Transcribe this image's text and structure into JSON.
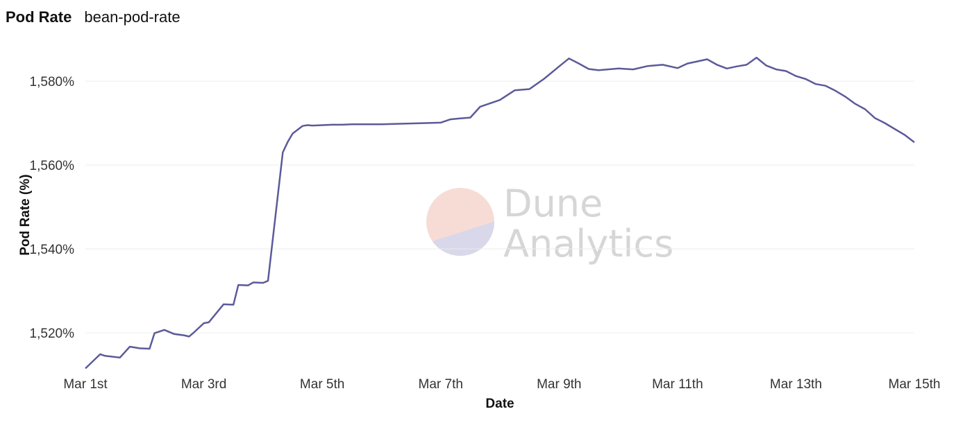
{
  "header": {
    "title": "Pod Rate",
    "subtitle": "bean-pod-rate"
  },
  "watermark": {
    "line1": "Dune",
    "line2": "Analytics"
  },
  "colors": {
    "line": "#5b5a99",
    "grid": "#ececec",
    "wm_top": "#f7dcd6",
    "wm_bottom": "#d8d8ea"
  },
  "chart_data": {
    "type": "line",
    "title": "",
    "xlabel": "Date",
    "ylabel": "Pod Rate (%)",
    "x_tick_labels": [
      "Mar 1st",
      "Mar 3rd",
      "Mar 5th",
      "Mar 7th",
      "Mar 9th",
      "Mar 11th",
      "Mar 13th",
      "Mar 15th"
    ],
    "x_tick_dates": [
      "03-01",
      "03-03",
      "03-05",
      "03-07",
      "03-09",
      "03-11",
      "03-13",
      "03-15"
    ],
    "y_tick_values": [
      1520,
      1540,
      1560,
      1580
    ],
    "y_tick_labels": [
      "1,520%",
      "1,540%",
      "1,560%",
      "1,580%"
    ],
    "xlim": [
      "03-01 00:00",
      "03-15 00:00"
    ],
    "ylim": [
      1512,
      1586
    ],
    "grid": "horizontal",
    "legend": "none",
    "series": [
      {
        "x": [
          "03-01 00:00",
          "03-01 06:00",
          "03-01 08:00",
          "03-01 14:00",
          "03-01 18:00",
          "03-01 22:00",
          "03-02 02:00",
          "03-02 04:00",
          "03-02 08:00",
          "03-02 12:00",
          "03-02 16:00",
          "03-02 18:00",
          "03-02 20:00",
          "03-03 00:00",
          "03-03 02:00",
          "03-03 08:00",
          "03-03 12:00",
          "03-03 14:00",
          "03-03 18:00",
          "03-03 20:00",
          "03-04 00:00",
          "03-04 02:00",
          "03-04 08:00",
          "03-04 10:00",
          "03-04 12:00",
          "03-04 16:00",
          "03-04 18:00",
          "03-04 20:00",
          "03-05 00:00",
          "03-05 04:00",
          "03-05 08:00",
          "03-05 12:00",
          "03-06 00:00",
          "03-06 18:00",
          "03-07 00:00",
          "03-07 04:00",
          "03-07 08:00",
          "03-07 12:00",
          "03-07 16:00",
          "03-08 00:00",
          "03-08 06:00",
          "03-08 12:00",
          "03-08 18:00",
          "03-09 00:00",
          "03-09 04:00",
          "03-09 08:00",
          "03-09 12:00",
          "03-09 16:00",
          "03-10 00:00",
          "03-10 06:00",
          "03-10 12:00",
          "03-10 18:00",
          "03-11 00:00",
          "03-11 04:00",
          "03-11 08:00",
          "03-11 12:00",
          "03-11 16:00",
          "03-11 20:00",
          "03-12 00:00",
          "03-12 04:00",
          "03-12 08:00",
          "03-12 12:00",
          "03-12 16:00",
          "03-12 20:00",
          "03-13 00:00",
          "03-13 04:00",
          "03-13 08:00",
          "03-13 12:00",
          "03-13 16:00",
          "03-13 20:00",
          "03-14 00:00",
          "03-14 04:00",
          "03-14 08:00",
          "03-14 12:00",
          "03-14 16:00",
          "03-14 20:00",
          "03-15 00:00"
        ],
        "y": [
          1511.5,
          1514.9,
          1514.5,
          1514.1,
          1516.7,
          1516.3,
          1516.2,
          1519.9,
          1520.7,
          1519.7,
          1519.4,
          1519.1,
          1520.1,
          1522.3,
          1522.5,
          1526.8,
          1526.7,
          1531.4,
          1531.3,
          1532.0,
          1531.9,
          1532.4,
          1563.0,
          1565.5,
          1567.5,
          1569.3,
          1569.5,
          1569.4,
          1569.5,
          1569.6,
          1569.6,
          1569.7,
          1569.7,
          1570.0,
          1570.1,
          1570.9,
          1571.1,
          1571.3,
          1573.9,
          1575.5,
          1577.8,
          1578.1,
          1580.6,
          1583.5,
          1585.4,
          1584.2,
          1582.9,
          1582.6,
          1583.0,
          1582.8,
          1583.6,
          1583.9,
          1583.1,
          1584.2,
          1584.7,
          1585.2,
          1583.9,
          1583.0,
          1583.5,
          1583.9,
          1585.6,
          1583.7,
          1582.8,
          1582.4,
          1581.2,
          1580.5,
          1579.3,
          1578.9,
          1577.7,
          1576.3,
          1574.6,
          1573.3,
          1571.2,
          1570.0,
          1568.6,
          1567.2,
          1565.4
        ]
      }
    ]
  }
}
